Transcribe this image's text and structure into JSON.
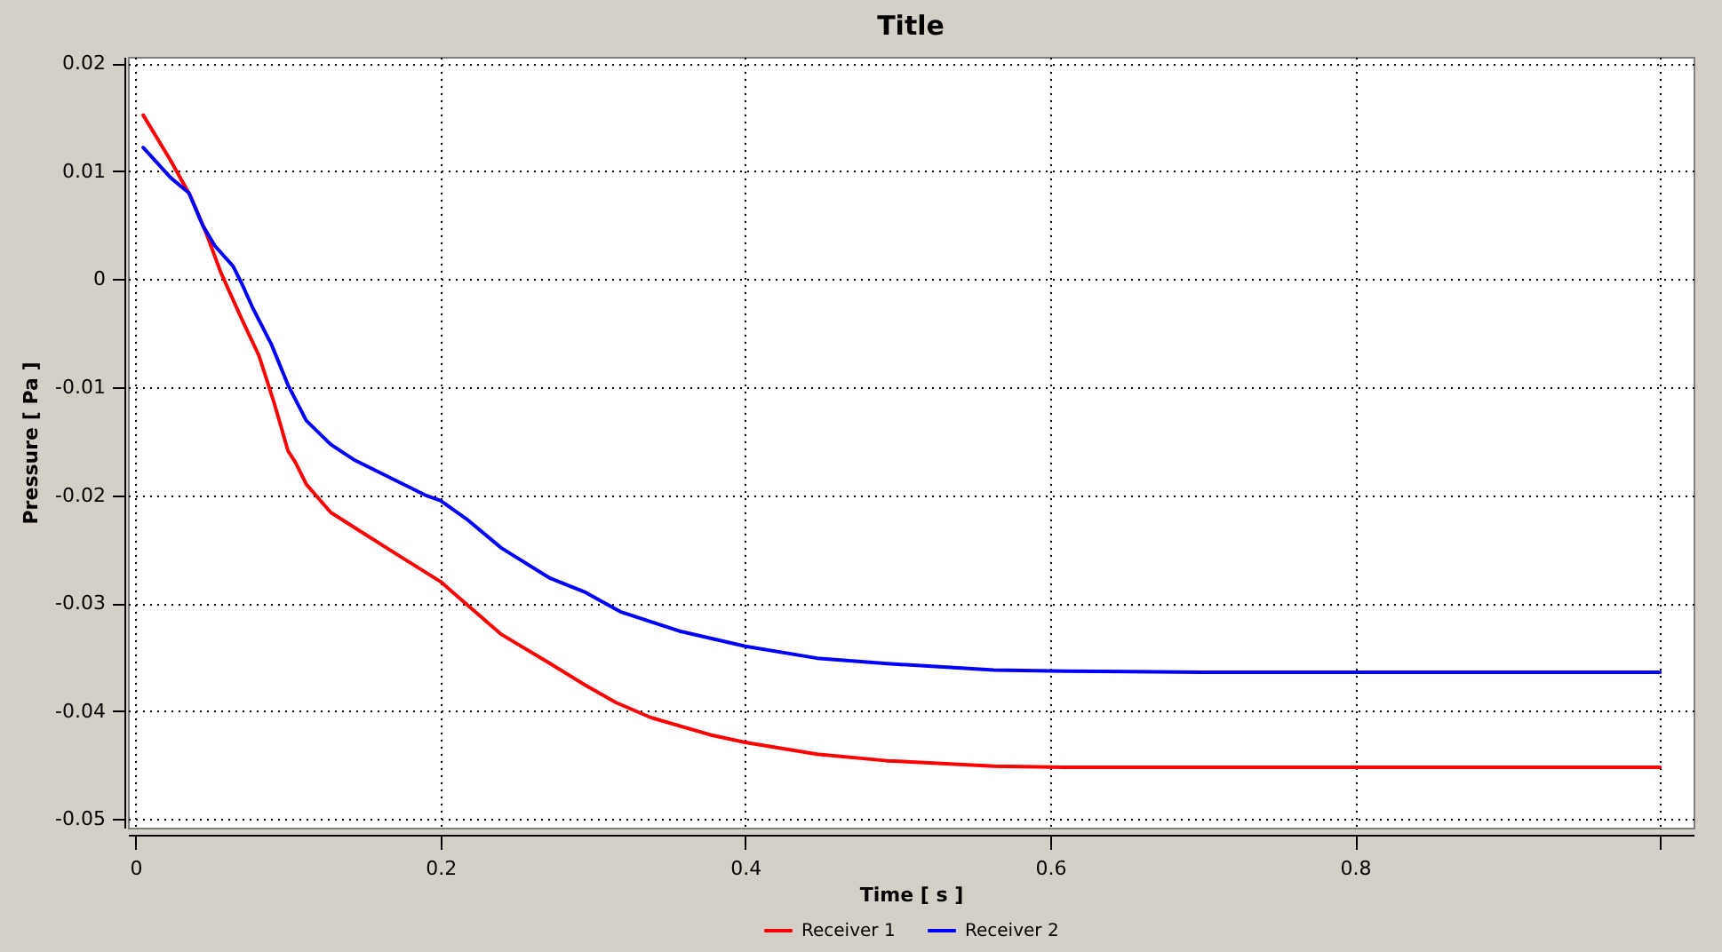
{
  "chart_data": {
    "type": "line",
    "title": "Title",
    "xlabel": "Time [ s ]",
    "ylabel": "Pressure [ Pa ]",
    "series": [
      {
        "name": "Receiver 1",
        "color": "#ff0000",
        "x": [
          0.005,
          0.023,
          0.036,
          0.046,
          0.056,
          0.07,
          0.081,
          0.091,
          0.1,
          0.105,
          0.112,
          0.128,
          0.147,
          0.175,
          0.2,
          0.217,
          0.24,
          0.272,
          0.295,
          0.315,
          0.338,
          0.377,
          0.4,
          0.447,
          0.493,
          0.563,
          0.61,
          0.7,
          0.8,
          1.0
        ],
        "values": [
          0.0152,
          0.011,
          0.0077,
          0.0044,
          0.0006,
          -0.0038,
          -0.0071,
          -0.0115,
          -0.0159,
          -0.017,
          -0.019,
          -0.0216,
          -0.0233,
          -0.0258,
          -0.028,
          -0.0301,
          -0.0329,
          -0.0356,
          -0.0376,
          -0.0392,
          -0.0406,
          -0.0422,
          -0.0429,
          -0.044,
          -0.0446,
          -0.0451,
          -0.0452,
          -0.0452,
          -0.0452,
          -0.0452
        ]
      },
      {
        "name": "Receiver 2",
        "color": "#0000ff",
        "x": [
          0.005,
          0.023,
          0.035,
          0.044,
          0.052,
          0.064,
          0.07,
          0.077,
          0.089,
          0.1,
          0.112,
          0.128,
          0.143,
          0.163,
          0.19,
          0.2,
          0.217,
          0.24,
          0.272,
          0.295,
          0.318,
          0.357,
          0.4,
          0.447,
          0.493,
          0.563,
          0.61,
          0.7,
          0.8,
          1.0
        ],
        "values": [
          0.0122,
          0.0094,
          0.008,
          0.005,
          0.0031,
          0.0012,
          -0.0005,
          -0.0027,
          -0.006,
          -0.0098,
          -0.0131,
          -0.0153,
          -0.0167,
          -0.0181,
          -0.02,
          -0.0205,
          -0.0222,
          -0.0249,
          -0.0277,
          -0.029,
          -0.0308,
          -0.0326,
          -0.034,
          -0.0351,
          -0.0356,
          -0.0362,
          -0.0363,
          -0.0364,
          -0.0364,
          -0.0364
        ]
      }
    ],
    "xlim": [
      -0.005,
      1.022
    ],
    "ylim": [
      -0.0508,
      0.0206
    ],
    "xticks": [
      0,
      0.2,
      0.4,
      0.6,
      0.8,
      {
        "value": 1,
        "label": null
      }
    ],
    "yticks": [
      -0.05,
      -0.04,
      -0.03,
      -0.02,
      -0.01,
      0,
      0.01,
      0.02
    ],
    "grid": true,
    "legend": "bottom"
  }
}
